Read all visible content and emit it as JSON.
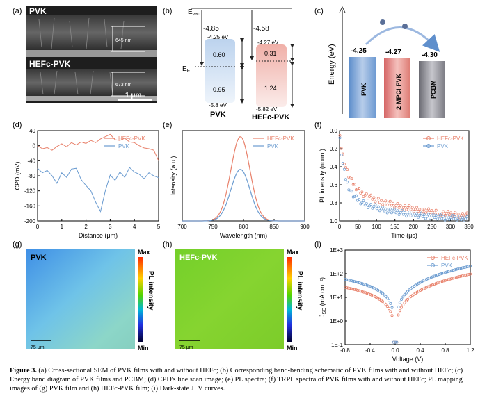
{
  "panel_labels": [
    "(a)",
    "(b)",
    "(c)",
    "(d)",
    "(e)",
    "(f)",
    "(g)",
    "(h)",
    "(i)"
  ],
  "panel_a": {
    "top_label": "PVK",
    "top_thickness": "645 nm",
    "bottom_label": "HEFc-PVK",
    "bottom_thickness": "673 nm",
    "scale_bar": "1 μm"
  },
  "panel_b": {
    "evac": "E",
    "evac_sub": "vac",
    "ef": "E",
    "ef_sub": "F",
    "pvk": {
      "wf": "-4.85",
      "cbm": "-4.25 eV",
      "gap_up": "0.60",
      "gap_down": "0.95",
      "vbm": "-5.8 eV",
      "name": "PVK"
    },
    "hefc": {
      "wf": "-4.58",
      "cbm": "-4.27 eV",
      "gap_up": "0.31",
      "gap_down": "1.24",
      "vbm": "-5.82 eV",
      "name": "HEFc-PVK"
    }
  },
  "panel_c": {
    "ylabel": "Energy (eV)",
    "boxes": [
      {
        "value": "-4.25",
        "name": "PVK",
        "color": "#7fa8d8"
      },
      {
        "value": "-4.27",
        "name": "2-MPCl-PVK",
        "color": "#e08080"
      },
      {
        "value": "-4.30",
        "name": "PCBM",
        "color": "#9a9aa2"
      }
    ]
  },
  "chart_data": [
    {
      "panel": "d",
      "type": "line",
      "xlabel": "Distance (μm)",
      "ylabel": "CPD (mV)",
      "xlim": [
        0,
        5
      ],
      "ylim": [
        -200,
        40
      ],
      "xticks": [
        "0",
        "1",
        "2",
        "3",
        "4",
        "5"
      ],
      "yticks": [
        "40",
        "0",
        "-40",
        "-80",
        "-120",
        "-160",
        "-200"
      ],
      "series": [
        {
          "name": "HEFc-PVK",
          "color": "#e8806a",
          "x": [
            0,
            0.2,
            0.4,
            0.6,
            0.8,
            1,
            1.2,
            1.4,
            1.6,
            1.8,
            2,
            2.2,
            2.4,
            2.6,
            2.8,
            3,
            3.2,
            3.4,
            3.6,
            3.8,
            4,
            4.2,
            4.4,
            4.6,
            4.8,
            5
          ],
          "y": [
            0,
            -8,
            -5,
            -12,
            -2,
            5,
            -3,
            8,
            2,
            10,
            6,
            14,
            8,
            18,
            24,
            30,
            16,
            14,
            20,
            10,
            8,
            0,
            -6,
            -8,
            -12,
            -40
          ]
        },
        {
          "name": "PVK",
          "color": "#6a9bd0",
          "x": [
            0,
            0.2,
            0.4,
            0.6,
            0.8,
            1,
            1.2,
            1.4,
            1.6,
            1.8,
            2,
            2.2,
            2.4,
            2.6,
            2.8,
            3,
            3.2,
            3.4,
            3.6,
            3.8,
            4,
            4.2,
            4.4,
            4.6,
            4.8,
            5
          ],
          "y": [
            -60,
            -72,
            -66,
            -80,
            -100,
            -72,
            -84,
            -62,
            -60,
            -90,
            -106,
            -120,
            -150,
            -175,
            -120,
            -78,
            -92,
            -70,
            -84,
            -58,
            -70,
            -76,
            -88,
            -72,
            -80,
            -85
          ]
        }
      ]
    },
    {
      "panel": "e",
      "type": "line",
      "xlabel": "Wavelength (nm)",
      "ylabel": "Intensity (a.u.)",
      "xlim": [
        700,
        900
      ],
      "ylim": [
        0,
        1.05
      ],
      "xticks": [
        "700",
        "750",
        "800",
        "850",
        "900"
      ],
      "series": [
        {
          "name": "HEFc-PVK",
          "color": "#e8806a",
          "peak": 795,
          "amplitude": 0.98,
          "width": 22
        },
        {
          "name": "PVK",
          "color": "#6a9bd0",
          "peak": 795,
          "amplitude": 0.6,
          "width": 22
        }
      ]
    },
    {
      "panel": "f",
      "type": "scatter",
      "xlabel": "Time (μs)",
      "ylabel": "PL intensity (norm.)",
      "xlim": [
        0,
        350
      ],
      "ylim": [
        0,
        1
      ],
      "xticks": [
        "0",
        "50",
        "100",
        "150",
        "200",
        "250",
        "300",
        "350"
      ],
      "yticks": [
        "0.0",
        "0.2",
        "0.4",
        "0.6",
        "0.8",
        "1.0"
      ],
      "series": [
        {
          "name": "HEFc-PVK",
          "color": "#e8806a",
          "a1": 0.55,
          "tau1": 20,
          "a2": 0.4,
          "tau2": 180
        },
        {
          "name": "PVK",
          "color": "#6a9bd0",
          "a1": 0.65,
          "tau1": 15,
          "a2": 0.3,
          "tau2": 140
        }
      ]
    },
    {
      "panel": "i",
      "type": "line",
      "xlabel": "Voltage (V)",
      "ylabel": "J",
      "ylabel_sub": "SC",
      "ylabel_unit": " (mA cm⁻²)",
      "xlim": [
        -0.8,
        1.2
      ],
      "ylim_log10": [
        -1,
        3
      ],
      "xticks": [
        "-0.8",
        "-0.4",
        "0.0",
        "0.4",
        "0.8",
        "1.2"
      ],
      "yticks": [
        "1E+3",
        "1E+2",
        "1E+1",
        "1E+0",
        "1E-1"
      ],
      "series": [
        {
          "name": "HEFc-PVK",
          "color": "#e8806a",
          "scale": 0.55
        },
        {
          "name": "PVK",
          "color": "#6a9bd0",
          "scale": 1.2
        }
      ]
    }
  ],
  "panel_g": {
    "label": "PVK",
    "scale": "75 μm"
  },
  "panel_h": {
    "label": "HEFc-PVK",
    "scale": "75 μm"
  },
  "colorbar": {
    "max": "Max",
    "min": "Min",
    "title": "PL intensity"
  },
  "caption": {
    "fig": "Figure 3.",
    "text": "(a) Cross-sectional SEM of PVK films with and without HEFc; (b) Corresponding band-bending schematic of PVK films with and without HEFc; (c) Energy band diagram of PVK films and PCBM; (d) CPD's line scan image; (e) PL spectra; (f) TRPL spectra of PVK films with and without HEFc; PL mapping images of (g) PVK film and (h) HEFc-PVK film; (i) Dark-state J−V curves."
  }
}
